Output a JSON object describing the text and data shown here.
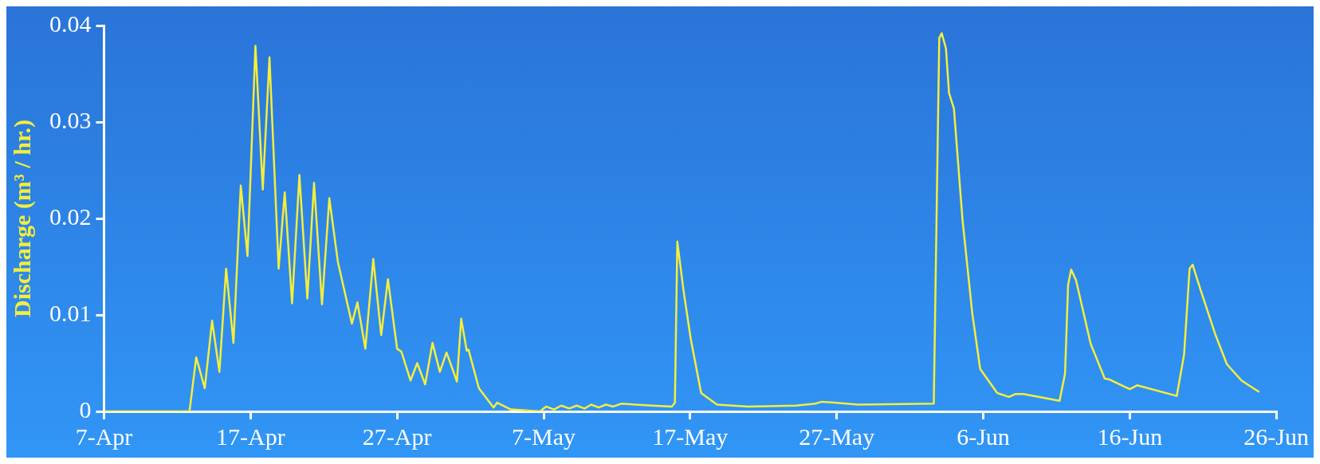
{
  "chart_data": {
    "type": "line",
    "ylabel": "Discharge (m³ / hr.)",
    "xlim": [
      "--04-07",
      "--06-26"
    ],
    "ylim": [
      0,
      0.04
    ],
    "xticks": [
      {
        "value": "--04-07",
        "label": "7-Apr"
      },
      {
        "value": "--04-17",
        "label": "17-Apr"
      },
      {
        "value": "--04-27",
        "label": "27-Apr"
      },
      {
        "value": "--05-07",
        "label": "7-May"
      },
      {
        "value": "--05-17",
        "label": "17-May"
      },
      {
        "value": "--05-27",
        "label": "27-May"
      },
      {
        "value": "--06-06",
        "label": "6-Jun"
      },
      {
        "value": "--06-16",
        "label": "16-Jun"
      },
      {
        "value": "--06-26",
        "label": "26-Jun"
      }
    ],
    "yticks": [
      0,
      0.01,
      0.02,
      0.03,
      0.04
    ],
    "grid": false,
    "legend": false,
    "marker": "none",
    "line_style": "solid",
    "series": [
      {
        "color": "#f5ee3a",
        "x": [
          "--04-07T00:00",
          "--04-12T20:00",
          "--04-13T07:00",
          "--04-13T21:00",
          "--04-14T09:00",
          "--04-14T21:00",
          "--04-15T08:00",
          "--04-15T20:00",
          "--04-16T08:00",
          "--04-16T19:00",
          "--04-17T08:00",
          "--04-17T20:00",
          "--04-18T07:00",
          "--04-18T22:00",
          "--04-19T08:00",
          "--04-19T20:00",
          "--04-20T08:00",
          "--04-20T21:00",
          "--04-21T08:00",
          "--04-21T21:00",
          "--04-22T09:00",
          "--04-22T23:00",
          "--04-23T22:00",
          "--04-24T07:00",
          "--04-24T20:00",
          "--04-25T09:00",
          "--04-25T22:00",
          "--04-26T09:00",
          "--04-27T00:00",
          "--04-27T07:00",
          "--04-27T22:00",
          "--04-28T09:00",
          "--04-28T22:00",
          "--04-29T10:00",
          "--04-29T22:00",
          "--04-30T09:00",
          "--05-01T02:00",
          "--05-01T09:00",
          "--05-01T18:00",
          "--05-01T21:00",
          "--05-02T14:00",
          "--05-03T14:00",
          "--05-03T20:00",
          "--05-04T18:00",
          "--05-06T18:00",
          "--05-07T04:00",
          "--05-07T17:00",
          "--05-08T05:00",
          "--05-08T18:00",
          "--05-09T06:00",
          "--05-09T19:00",
          "--05-10T06:00",
          "--05-10T18:00",
          "--05-11T06:00",
          "--05-11T18:00",
          "--05-12T07:00",
          "--05-13T06:00",
          "--05-14T10:00",
          "--05-15T18:00",
          "--05-15T23:00",
          "--05-16T03:00",
          "--05-16T13:00",
          "--05-17T01:00",
          "--05-17T18:00",
          "--05-18T20:00",
          "--05-20T23:00",
          "--05-24T05:00",
          "--05-25T13:00",
          "--05-26T00:00",
          "--05-26T20:00",
          "--05-28T11:00",
          "--06-02T15:00",
          "--06-03T00:00",
          "--06-03T04:00",
          "--06-03T11:00",
          "--06-03T16:00",
          "--06-04T00:00",
          "--06-04T14:00",
          "--06-05T06:00",
          "--06-05T19:00",
          "--06-06T23:00",
          "--06-07T18:00",
          "--06-08T05:00",
          "--06-08T18:00",
          "--06-11T05:00",
          "--06-11T14:00",
          "--06-11T19:00",
          "--06-12T00:00",
          "--06-12T08:00",
          "--06-13T08:00",
          "--06-14T07:00",
          "--06-14T15:00",
          "--06-16T00:00",
          "--06-16T12:00",
          "--06-19T05:00",
          "--06-19T17:00",
          "--06-20T02:00",
          "--06-20T07:00",
          "--06-20T20:00",
          "--06-21T20:00",
          "--06-22T15:00",
          "--06-23T15:00",
          "--06-24T20:00"
        ],
        "values": [
          0,
          0,
          0.0056,
          0.0024,
          0.0094,
          0.0041,
          0.0148,
          0.0071,
          0.0234,
          0.0161,
          0.0379,
          0.023,
          0.0367,
          0.0148,
          0.0227,
          0.0112,
          0.0245,
          0.0117,
          0.0237,
          0.0111,
          0.0221,
          0.0155,
          0.0091,
          0.0113,
          0.0065,
          0.0158,
          0.0079,
          0.0137,
          0.0065,
          0.0062,
          0.0032,
          0.005,
          0.0028,
          0.0071,
          0.0041,
          0.0061,
          0.0031,
          0.0096,
          0.0063,
          0.0064,
          0.0024,
          0.0004,
          0.0009,
          0.0002,
          0,
          0.0005,
          0.0002,
          0.0006,
          0.0003,
          0.0006,
          0.0003,
          0.0007,
          0.0004,
          0.0007,
          0.0005,
          0.0008,
          0.0007,
          0.0006,
          0.0005,
          0.0009,
          0.0176,
          0.0126,
          0.0075,
          0.0019,
          0.0007,
          0.0005,
          0.0006,
          0.0008,
          0.001,
          0.0009,
          0.0007,
          0.0008,
          0.0387,
          0.0392,
          0.0376,
          0.033,
          0.0314,
          0.0199,
          0.0102,
          0.0044,
          0.0019,
          0.0015,
          0.0018,
          0.0018,
          0.0011,
          0.0039,
          0.0131,
          0.0147,
          0.0136,
          0.007,
          0.0034,
          0.0033,
          0.0023,
          0.0027,
          0.0016,
          0.0059,
          0.0148,
          0.0152,
          0.0126,
          0.008,
          0.0049,
          0.0032,
          0.002
        ]
      }
    ]
  }
}
